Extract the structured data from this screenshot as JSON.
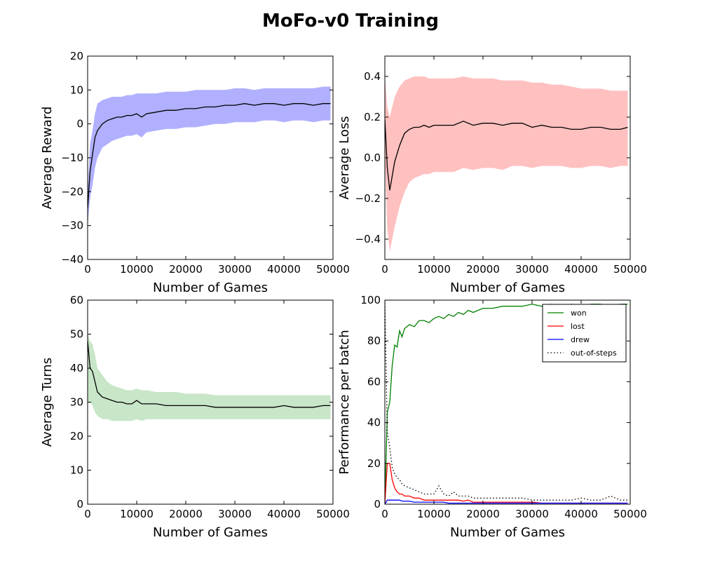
{
  "figure": {
    "title": "MoFo-v0 Training"
  },
  "chart_data": [
    {
      "id": "reward",
      "type": "line",
      "xlabel": "Number of Games",
      "ylabel": "Average Reward",
      "xlim": [
        0,
        50000
      ],
      "ylim": [
        -40,
        20
      ],
      "xticks": [
        0,
        10000,
        20000,
        30000,
        40000,
        50000
      ],
      "yticks": [
        -40,
        -30,
        -20,
        -10,
        0,
        10,
        20
      ],
      "band_color": "#b0b0ff",
      "line_color": "#000000",
      "series": [
        {
          "x": [
            0,
            500,
            1000,
            1500,
            2000,
            3000,
            4000,
            5000,
            6000,
            7000,
            8000,
            9000,
            10000,
            11000,
            12000,
            14000,
            16000,
            18000,
            20000,
            22000,
            24000,
            26000,
            28000,
            30000,
            32000,
            34000,
            36000,
            38000,
            40000,
            42000,
            44000,
            46000,
            48000,
            49500
          ],
          "mean": [
            -25,
            -14,
            -9,
            -4,
            -2,
            0,
            1,
            1.5,
            2,
            2,
            2.5,
            2.5,
            3,
            2,
            3,
            3.5,
            4,
            4,
            4.5,
            4.5,
            5,
            5,
            5.5,
            5.5,
            6,
            5.5,
            6,
            6,
            5.5,
            6,
            6,
            5.5,
            6,
            6
          ],
          "upper": [
            -20,
            -6,
            -2,
            3,
            6,
            7,
            7.5,
            8,
            8,
            8,
            8.5,
            8.5,
            9,
            9,
            9,
            9,
            9.5,
            9.5,
            9.5,
            10,
            10,
            10,
            10,
            10.5,
            10.5,
            10,
            10.5,
            10.5,
            10.5,
            10.5,
            10.5,
            10.5,
            11,
            11
          ],
          "lower": [
            -30,
            -22,
            -18,
            -13,
            -10,
            -7,
            -6,
            -5,
            -4.5,
            -4,
            -3.5,
            -3.5,
            -3,
            -4,
            -2.5,
            -2,
            -1.5,
            -1.5,
            -1,
            -1,
            -0.5,
            0,
            0,
            0.5,
            0.5,
            0.5,
            1,
            1,
            0.5,
            1,
            1,
            0.5,
            1,
            1
          ]
        }
      ]
    },
    {
      "id": "loss",
      "type": "line",
      "xlabel": "Number of Games",
      "ylabel": "Average Loss",
      "xlim": [
        0,
        50000
      ],
      "ylim": [
        -0.5,
        0.5
      ],
      "xticks": [
        0,
        10000,
        20000,
        30000,
        40000,
        50000
      ],
      "yticks": [
        -0.4,
        -0.2,
        0.0,
        0.2,
        0.4
      ],
      "band_color": "#ffc0c0",
      "line_color": "#000000",
      "series": [
        {
          "x": [
            0,
            500,
            1000,
            2000,
            3000,
            4000,
            5000,
            6000,
            7000,
            8000,
            9000,
            10000,
            12000,
            14000,
            16000,
            18000,
            20000,
            22000,
            24000,
            26000,
            28000,
            30000,
            32000,
            34000,
            36000,
            38000,
            40000,
            42000,
            44000,
            46000,
            48000,
            49500
          ],
          "mean": [
            0.19,
            -0.05,
            -0.16,
            -0.02,
            0.06,
            0.12,
            0.14,
            0.15,
            0.15,
            0.16,
            0.15,
            0.16,
            0.16,
            0.16,
            0.18,
            0.16,
            0.17,
            0.17,
            0.16,
            0.17,
            0.17,
            0.15,
            0.16,
            0.15,
            0.15,
            0.14,
            0.14,
            0.15,
            0.15,
            0.14,
            0.14,
            0.15
          ],
          "upper": [
            0.4,
            0.25,
            0.2,
            0.3,
            0.35,
            0.38,
            0.39,
            0.4,
            0.4,
            0.4,
            0.39,
            0.39,
            0.39,
            0.39,
            0.4,
            0.39,
            0.39,
            0.39,
            0.38,
            0.38,
            0.38,
            0.37,
            0.37,
            0.36,
            0.36,
            0.35,
            0.34,
            0.34,
            0.34,
            0.33,
            0.33,
            0.33
          ],
          "lower": [
            0.0,
            -0.35,
            -0.46,
            -0.34,
            -0.24,
            -0.17,
            -0.12,
            -0.1,
            -0.09,
            -0.08,
            -0.08,
            -0.07,
            -0.07,
            -0.07,
            -0.05,
            -0.06,
            -0.05,
            -0.05,
            -0.06,
            -0.04,
            -0.04,
            -0.05,
            -0.04,
            -0.04,
            -0.04,
            -0.05,
            -0.05,
            -0.04,
            -0.04,
            -0.05,
            -0.04,
            -0.04
          ]
        }
      ]
    },
    {
      "id": "turns",
      "type": "line",
      "xlabel": "Number of Games",
      "ylabel": "Average Turns",
      "xlim": [
        0,
        50000
      ],
      "ylim": [
        0,
        60
      ],
      "xticks": [
        0,
        10000,
        20000,
        30000,
        40000,
        50000
      ],
      "yticks": [
        0,
        10,
        20,
        30,
        40,
        50,
        60
      ],
      "band_color": "#c8e6c8",
      "line_color": "#000000",
      "series": [
        {
          "x": [
            0,
            500,
            1000,
            1500,
            2000,
            3000,
            4000,
            5000,
            6000,
            7000,
            8000,
            9000,
            10000,
            11000,
            12000,
            14000,
            16000,
            18000,
            20000,
            22000,
            24000,
            26000,
            28000,
            30000,
            32000,
            34000,
            36000,
            38000,
            40000,
            42000,
            44000,
            46000,
            48000,
            49500
          ],
          "mean": [
            48,
            40,
            39,
            36,
            33,
            31.5,
            31,
            30.5,
            30,
            30,
            29.5,
            29.5,
            30.5,
            29.5,
            29.5,
            29.5,
            29,
            29,
            29,
            29,
            29,
            28.5,
            28.5,
            28.5,
            28.5,
            28.5,
            28.5,
            28.5,
            29,
            28.5,
            28.5,
            28.5,
            29,
            29
          ],
          "upper": [
            50,
            48,
            47,
            44,
            40,
            38,
            36,
            35,
            34.5,
            34,
            33.5,
            33.5,
            34,
            33.5,
            33.5,
            33,
            33,
            33,
            32.5,
            32.5,
            32.5,
            32,
            32,
            32,
            32,
            32,
            32,
            32,
            32,
            32,
            32,
            32,
            32,
            32
          ],
          "lower": [
            30,
            30,
            29,
            27,
            26,
            25,
            25,
            24.5,
            24.5,
            24.5,
            24.5,
            24.5,
            25,
            24.5,
            25,
            25,
            25,
            25,
            25,
            25,
            25,
            25,
            25,
            25,
            25,
            25,
            25,
            25,
            25,
            25,
            25,
            25,
            25,
            25
          ]
        }
      ]
    },
    {
      "id": "performance",
      "type": "line",
      "xlabel": "Number of Games",
      "ylabel": "Performance per batch",
      "xlim": [
        0,
        50000
      ],
      "ylim": [
        0,
        100
      ],
      "xticks": [
        0,
        10000,
        20000,
        30000,
        40000,
        50000
      ],
      "yticks": [
        0,
        20,
        40,
        60,
        80,
        100
      ],
      "legend": "top-right",
      "x": [
        0,
        500,
        1000,
        1500,
        2000,
        2500,
        3000,
        3500,
        4000,
        5000,
        6000,
        7000,
        8000,
        9000,
        10000,
        11000,
        12000,
        13000,
        14000,
        15000,
        16000,
        17000,
        18000,
        20000,
        22000,
        24000,
        26000,
        28000,
        30000,
        32000,
        34000,
        36000,
        38000,
        40000,
        42000,
        44000,
        46000,
        48000,
        49500
      ],
      "series": [
        {
          "name": "won",
          "color": "#008000",
          "dash": "solid",
          "values": [
            0,
            45,
            50,
            68,
            78,
            77,
            85,
            82,
            86,
            88,
            87,
            90,
            90,
            89,
            91,
            92,
            91,
            93,
            92,
            94,
            93,
            95,
            94,
            96,
            96,
            97,
            97,
            97,
            98,
            97,
            98,
            97,
            98,
            97,
            98,
            98,
            97,
            98,
            98
          ]
        },
        {
          "name": "lost",
          "color": "#ff0000",
          "dash": "solid",
          "values": [
            0,
            20,
            20,
            12,
            8,
            6,
            5,
            5,
            4,
            4,
            3,
            3,
            2,
            2,
            2,
            2,
            2,
            2,
            2,
            2,
            1.5,
            2,
            1,
            1,
            1,
            1,
            1,
            1,
            1,
            0.5,
            0.5,
            0.5,
            0.5,
            0.5,
            0.5,
            0.5,
            0.5,
            0.5,
            0.5
          ]
        },
        {
          "name": "drew",
          "color": "#0000ff",
          "dash": "solid",
          "values": [
            0,
            2,
            2,
            2,
            2,
            2,
            2,
            1.5,
            1.5,
            1.5,
            1,
            1,
            1,
            1,
            1,
            1,
            1,
            0.5,
            0.5,
            0.5,
            0.5,
            0.5,
            0.5,
            0.5,
            0.5,
            0.5,
            0.5,
            0.5,
            0.5,
            0.5,
            0.5,
            0.5,
            0.5,
            0.5,
            0.5,
            0.5,
            0.5,
            0.5,
            0.5
          ]
        },
        {
          "name": "out-of-steps",
          "color": "#000000",
          "dash": "dotted",
          "values": [
            100,
            35,
            28,
            18,
            15,
            13,
            12,
            10,
            9,
            8,
            7,
            6,
            5,
            5,
            5,
            9,
            5,
            4,
            6,
            4,
            4,
            4,
            3,
            3,
            3,
            3,
            3,
            3,
            2,
            2,
            2,
            2,
            2,
            3,
            2,
            2,
            4,
            2,
            2
          ]
        }
      ]
    }
  ]
}
